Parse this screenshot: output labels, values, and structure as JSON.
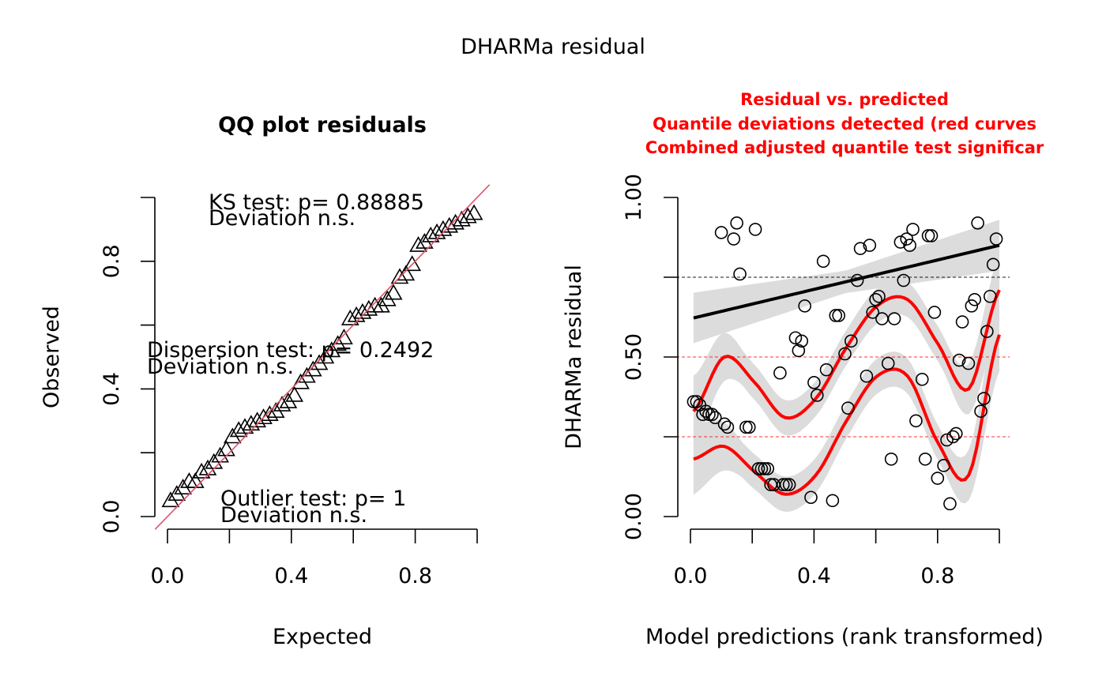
{
  "figure": {
    "title": "DHARMa residual"
  },
  "qq": {
    "title": "QQ plot residuals",
    "xlabel": "Expected",
    "ylabel": "Observed",
    "xticks": [
      "0.0",
      "0.4",
      "0.8"
    ],
    "yticks": [
      "0.0",
      "0.4",
      "0.8"
    ],
    "annotations": {
      "ks_test": "KS test: p= 0.88885",
      "ks_dev": "Deviation  n.s.",
      "disp_test": "Dispersion test: p= 0.2492",
      "disp_dev": "Deviation  n.s.",
      "out_test": "Outlier test: p= 1",
      "out_dev": "Deviation  n.s."
    },
    "colors": {
      "reference_line": "#df536b",
      "points": "#000000"
    }
  },
  "rvp": {
    "title_lines": [
      "Residual vs. predicted",
      "Quantile deviations detected (red curves",
      "Combined adjusted quantile test significar"
    ],
    "xlabel": "Model predictions (rank transformed)",
    "ylabel": "DHARMa residual",
    "xticks": [
      "0.0",
      "0.4",
      "0.8"
    ],
    "yticks": [
      "0.00",
      "0.50",
      "1.00"
    ],
    "colors": {
      "title": "#ff0000",
      "quantile_curves": "#ff0000",
      "bands": "#dcdcdc",
      "median_line": "#000000"
    }
  },
  "chart_data": [
    {
      "type": "scatter",
      "title": "QQ plot residuals",
      "xlabel": "Expected",
      "ylabel": "Observed",
      "xlim": [
        -0.04,
        1.04
      ],
      "ylim": [
        -0.03,
        1.0
      ],
      "marker": "triangle",
      "reference_line": {
        "slope": 1,
        "intercept": 0
      },
      "x": [
        0.01,
        0.03,
        0.05,
        0.07,
        0.09,
        0.11,
        0.13,
        0.15,
        0.17,
        0.19,
        0.21,
        0.23,
        0.25,
        0.27,
        0.29,
        0.31,
        0.33,
        0.35,
        0.37,
        0.39,
        0.41,
        0.43,
        0.45,
        0.47,
        0.49,
        0.51,
        0.53,
        0.55,
        0.57,
        0.59,
        0.61,
        0.63,
        0.65,
        0.67,
        0.69,
        0.71,
        0.73,
        0.75,
        0.77,
        0.79,
        0.81,
        0.83,
        0.85,
        0.87,
        0.89,
        0.91,
        0.93,
        0.95,
        0.97,
        0.99
      ],
      "y": [
        0.05,
        0.07,
        0.09,
        0.11,
        0.11,
        0.14,
        0.15,
        0.17,
        0.19,
        0.21,
        0.25,
        0.27,
        0.28,
        0.29,
        0.3,
        0.31,
        0.32,
        0.33,
        0.35,
        0.36,
        0.38,
        0.42,
        0.44,
        0.46,
        0.48,
        0.5,
        0.52,
        0.54,
        0.56,
        0.62,
        0.63,
        0.64,
        0.65,
        0.66,
        0.66,
        0.68,
        0.7,
        0.75,
        0.76,
        0.79,
        0.85,
        0.86,
        0.88,
        0.89,
        0.9,
        0.91,
        0.92,
        0.93,
        0.94,
        0.95
      ]
    },
    {
      "type": "scatter",
      "title": "Residual vs. predicted",
      "xlabel": "Model predictions (rank transformed)",
      "ylabel": "DHARMa residual",
      "xlim": [
        -0.04,
        1.04
      ],
      "ylim": [
        -0.04,
        1.04
      ],
      "marker": "circle",
      "reference_lines": [
        0.25,
        0.5,
        0.75
      ],
      "x": [
        0.01,
        0.02,
        0.03,
        0.04,
        0.05,
        0.06,
        0.07,
        0.08,
        0.1,
        0.11,
        0.12,
        0.14,
        0.15,
        0.16,
        0.18,
        0.19,
        0.21,
        0.22,
        0.23,
        0.24,
        0.25,
        0.26,
        0.27,
        0.29,
        0.3,
        0.31,
        0.32,
        0.34,
        0.35,
        0.36,
        0.37,
        0.39,
        0.4,
        0.41,
        0.43,
        0.44,
        0.46,
        0.47,
        0.48,
        0.5,
        0.51,
        0.52,
        0.54,
        0.55,
        0.57,
        0.58,
        0.59,
        0.6,
        0.61,
        0.62,
        0.64,
        0.65,
        0.66,
        0.68,
        0.69,
        0.7,
        0.71,
        0.72,
        0.73,
        0.75,
        0.76,
        0.77,
        0.78,
        0.79,
        0.8,
        0.82,
        0.83,
        0.84,
        0.85,
        0.86,
        0.87,
        0.88,
        0.9,
        0.91,
        0.92,
        0.93,
        0.94,
        0.95,
        0.96,
        0.97,
        0.98,
        0.99
      ],
      "y": [
        0.36,
        0.36,
        0.35,
        0.32,
        0.33,
        0.32,
        0.32,
        0.31,
        0.89,
        0.29,
        0.28,
        0.87,
        0.92,
        0.76,
        0.28,
        0.28,
        0.9,
        0.15,
        0.15,
        0.15,
        0.15,
        0.1,
        0.1,
        0.45,
        0.1,
        0.1,
        0.1,
        0.56,
        0.52,
        0.55,
        0.66,
        0.06,
        0.42,
        0.38,
        0.8,
        0.46,
        0.05,
        0.63,
        0.63,
        0.51,
        0.34,
        0.55,
        0.74,
        0.84,
        0.44,
        0.85,
        0.64,
        0.68,
        0.69,
        0.62,
        0.48,
        0.18,
        0.62,
        0.86,
        0.74,
        0.87,
        0.85,
        0.9,
        0.3,
        0.43,
        0.18,
        0.88,
        0.88,
        0.64,
        0.12,
        0.16,
        0.24,
        0.04,
        0.25,
        0.26,
        0.49,
        0.61,
        0.48,
        0.66,
        0.68,
        0.92,
        0.33,
        0.37,
        0.58,
        0.69,
        0.79,
        0.87
      ],
      "regression_line": {
        "y_at_0": 0.62,
        "y_at_1": 0.85
      },
      "quantile_curves": {
        "x": [
          0,
          0.1,
          0.2,
          0.3,
          0.4,
          0.5,
          0.6,
          0.7,
          0.8,
          0.9,
          1.0
        ],
        "q25": [
          0.18,
          0.22,
          0.14,
          0.07,
          0.13,
          0.3,
          0.44,
          0.44,
          0.23,
          0.13,
          0.57
        ],
        "q50": [
          0.33,
          0.5,
          0.42,
          0.31,
          0.37,
          0.53,
          0.66,
          0.68,
          0.54,
          0.4,
          0.71
        ]
      }
    }
  ]
}
